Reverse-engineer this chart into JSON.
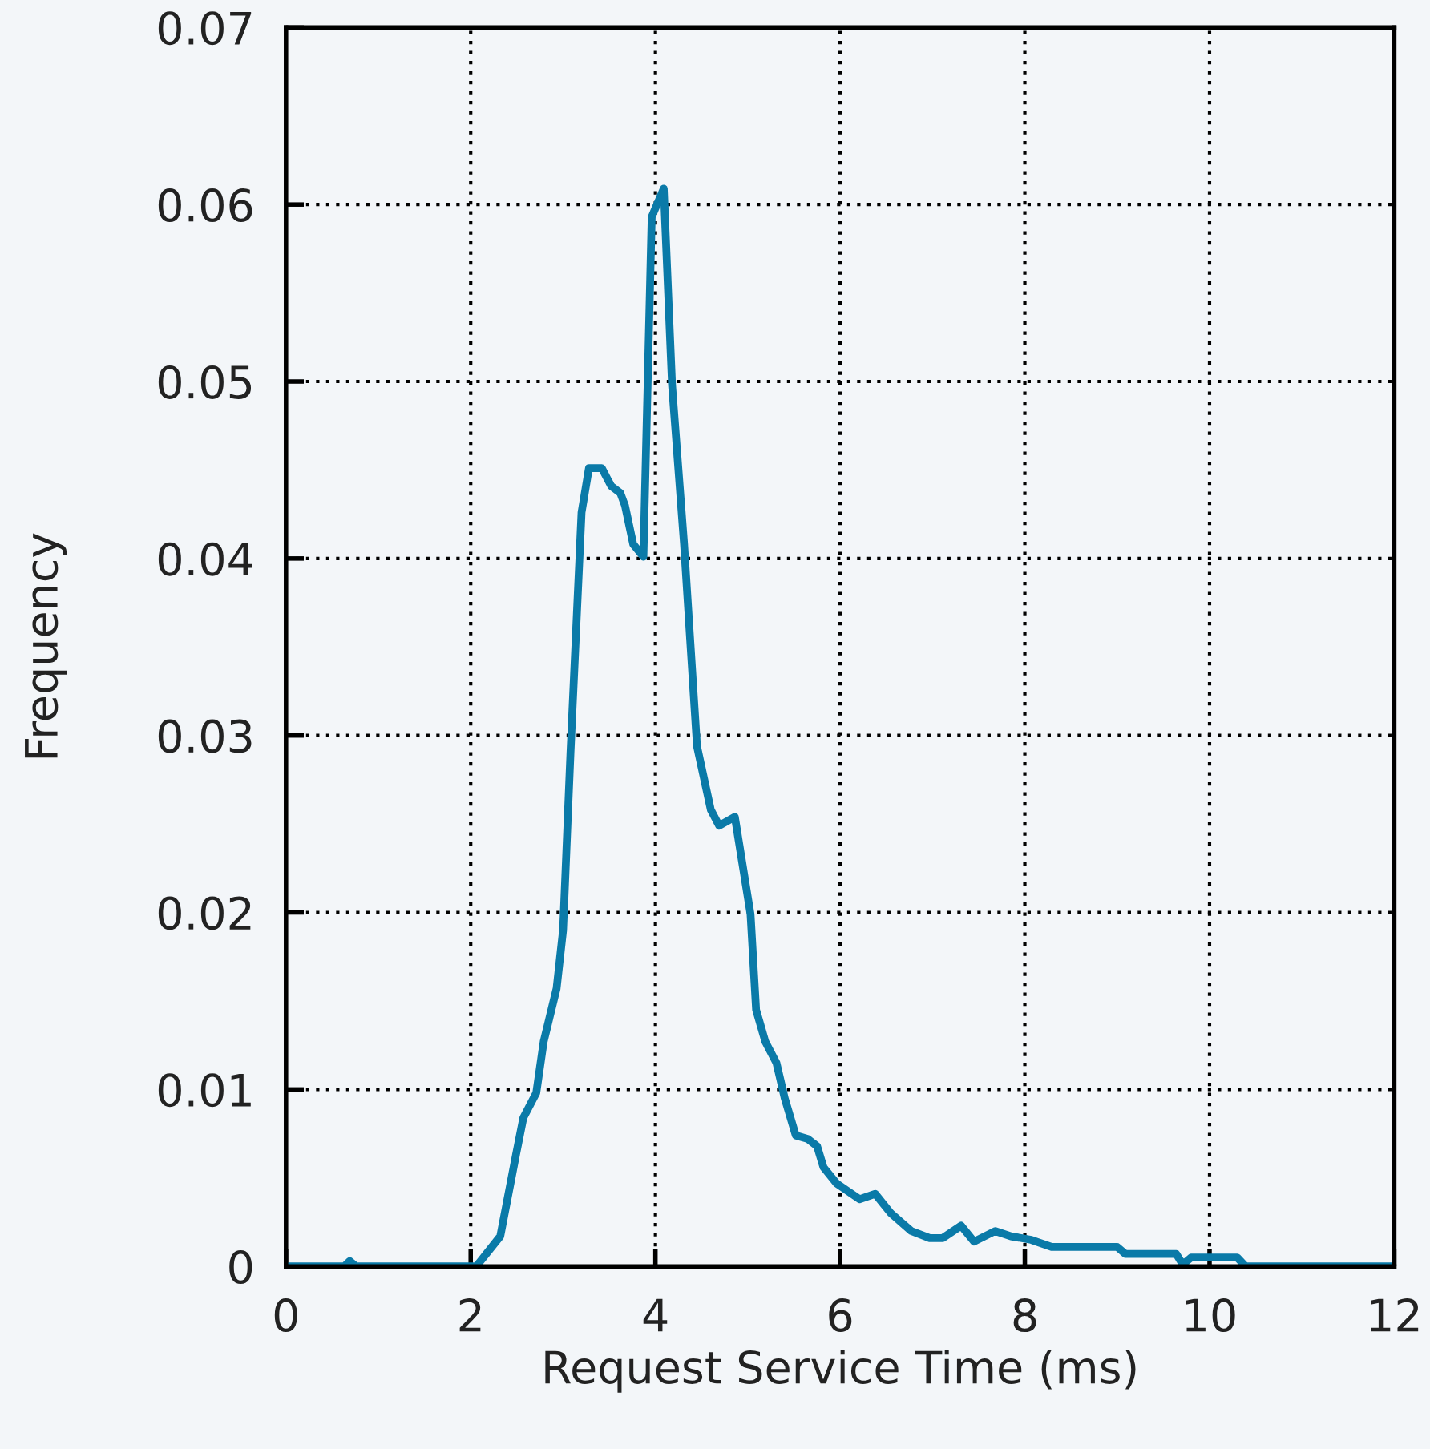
{
  "chart_data": {
    "type": "line",
    "xlabel": "Request Service Time (ms)",
    "ylabel": "Frequency",
    "xlim": [
      0,
      12
    ],
    "ylim": [
      0,
      0.07
    ],
    "xticks": [
      0,
      2,
      4,
      6,
      8,
      10,
      12
    ],
    "yticks": [
      0,
      0.01,
      0.02,
      0.03,
      0.04,
      0.05,
      0.06,
      0.07
    ],
    "grid": true,
    "legend": false,
    "marker": "none",
    "line_style": "solid",
    "series": [
      {
        "color": "#0a7aa8",
        "x": [
          0,
          0.63,
          0.69,
          0.76,
          2.06,
          2.32,
          2.49,
          2.57,
          2.71,
          2.79,
          2.93,
          3.0,
          3.08,
          3.2,
          3.28,
          3.42,
          3.52,
          3.62,
          3.67,
          3.76,
          3.87,
          3.96,
          4.09,
          4.18,
          4.31,
          4.45,
          4.6,
          4.69,
          4.86,
          5.03,
          5.09,
          5.19,
          5.31,
          5.4,
          5.52,
          5.65,
          5.75,
          5.82,
          5.96,
          6.21,
          6.38,
          6.55,
          6.77,
          6.97,
          7.11,
          7.31,
          7.45,
          7.68,
          7.85,
          8.07,
          8.29,
          9.0,
          9.09,
          9.64,
          9.71,
          9.8,
          10.3,
          10.39,
          12
        ],
        "values": [
          0,
          0,
          0.0003,
          0,
          0,
          0.0017,
          0.0063,
          0.0084,
          0.0098,
          0.0127,
          0.0157,
          0.019,
          0.029,
          0.0426,
          0.0451,
          0.0451,
          0.0441,
          0.0437,
          0.043,
          0.0408,
          0.0401,
          0.0593,
          0.0609,
          0.0498,
          0.0408,
          0.0294,
          0.0258,
          0.0249,
          0.0254,
          0.0199,
          0.0145,
          0.0127,
          0.0115,
          0.0095,
          0.0074,
          0.0072,
          0.0068,
          0.0056,
          0.0047,
          0.0038,
          0.0041,
          0.003,
          0.002,
          0.0016,
          0.0016,
          0.0023,
          0.0014,
          0.002,
          0.0017,
          0.0015,
          0.0011,
          0.0011,
          0.0007,
          0.0007,
          0.0001,
          0.0005,
          0.0005,
          0,
          0
        ]
      }
    ]
  }
}
